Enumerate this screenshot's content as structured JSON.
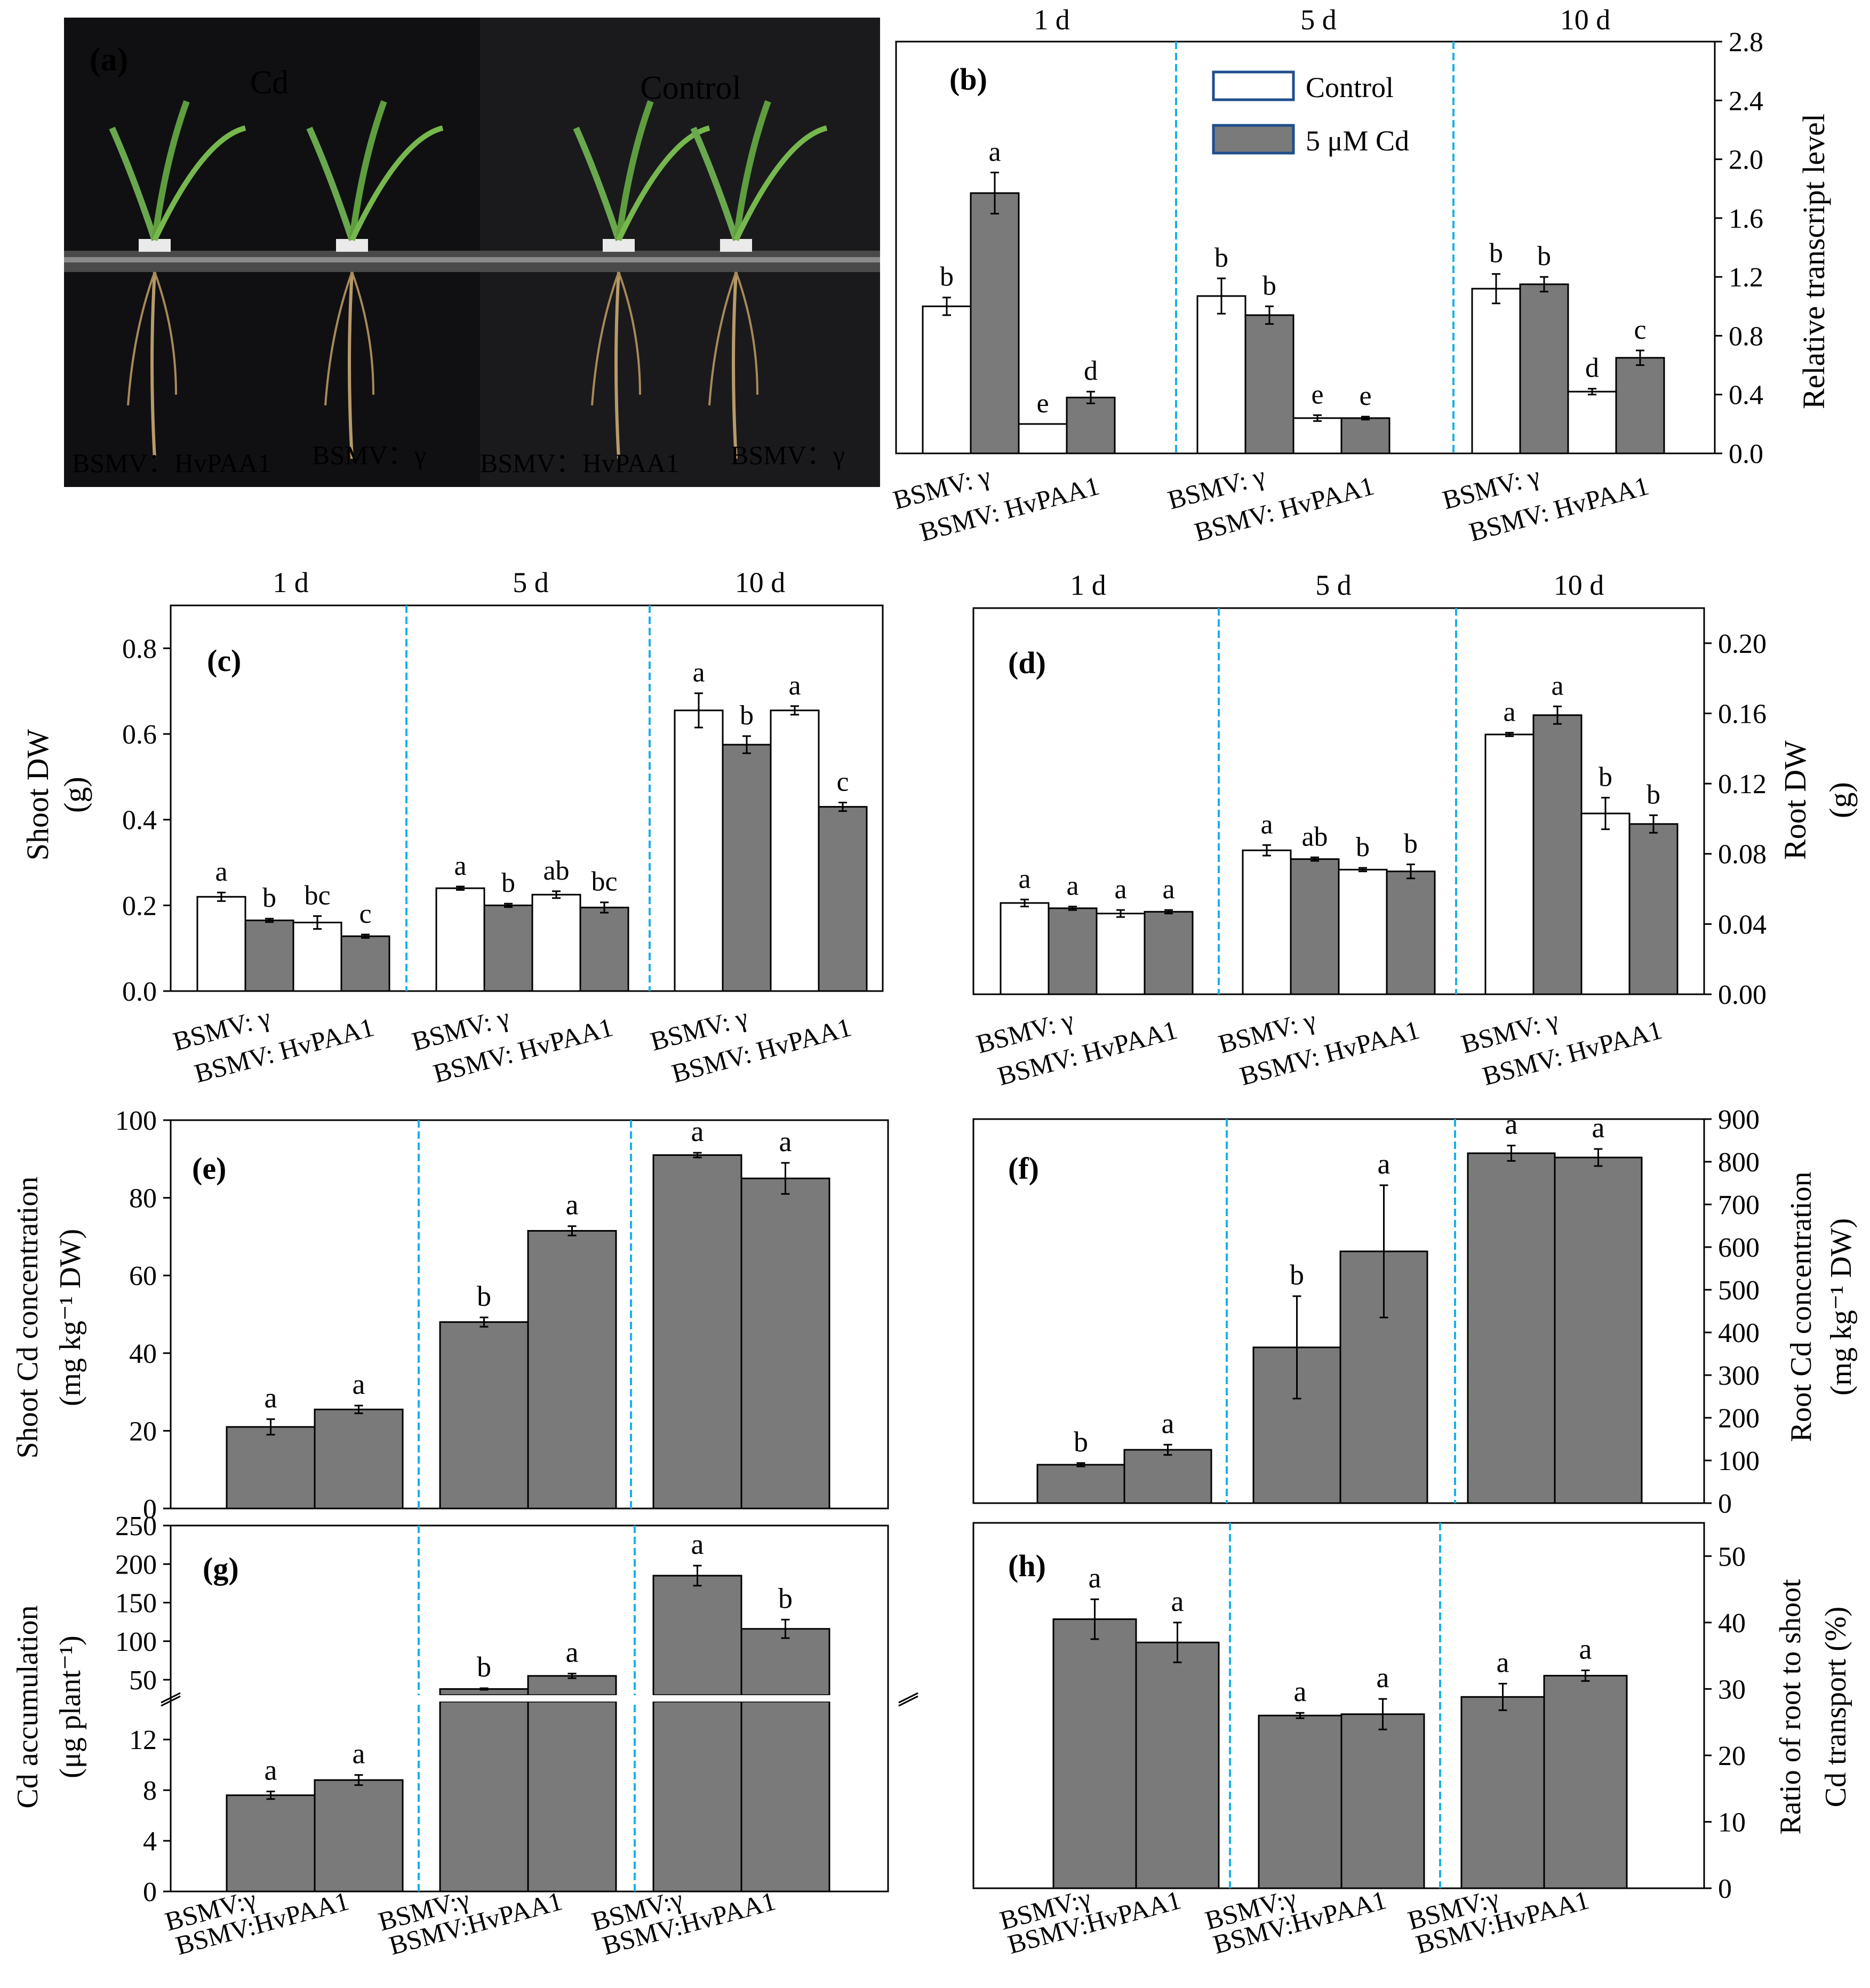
{
  "colors": {
    "control_fill": "#ffffff",
    "cd_fill": "#7a7a7a",
    "divider": "#1ab0e8",
    "panel_a_label": "#e8d000",
    "photo_text": "#ffffff",
    "photo_bg": "#0c0c0e"
  },
  "panel_a": {
    "label": "(a)",
    "left_title": "Cd",
    "right_title": "Control",
    "bottom_labels": [
      "BSMV：HvPAA1",
      "BSMV：γ",
      "BSMV：HvPAA1",
      "BSMV：γ"
    ]
  },
  "chart_data": [
    {
      "id": "b",
      "label": "(b)",
      "type": "bar",
      "days": [
        "1 d",
        "5 d",
        "10 d"
      ],
      "categories": [
        "BSMV: γ",
        "BSMV: HvPAA1"
      ],
      "legend": [
        "Control",
        "5 μM Cd"
      ],
      "series": [
        {
          "name": "Control",
          "values": [
            [
              1.0,
              0.2
            ],
            [
              1.07,
              0.24
            ],
            [
              1.12,
              0.42
            ]
          ],
          "errors": [
            [
              0.06,
              0.0
            ],
            [
              0.12,
              0.02
            ],
            [
              0.1,
              0.02
            ]
          ]
        },
        {
          "name": "5 μM Cd",
          "values": [
            [
              1.77,
              0.38
            ],
            [
              0.94,
              0.24
            ],
            [
              1.15,
              0.65
            ]
          ],
          "errors": [
            [
              0.14,
              0.04
            ],
            [
              0.06,
              0.01
            ],
            [
              0.05,
              0.05
            ]
          ]
        }
      ],
      "letters": [
        [
          [
            "b",
            "e"
          ],
          [
            "b",
            "e"
          ],
          [
            "b",
            "d"
          ]
        ],
        [
          [
            "a",
            "d"
          ],
          [
            "b",
            "e"
          ],
          [
            "b",
            "c"
          ]
        ]
      ],
      "ylabel": "Relative transcript level",
      "ylim": [
        0,
        2.8
      ],
      "yticks": [
        "0.0",
        "0.4",
        "0.8",
        "1.2",
        "1.6",
        "2.0",
        "2.4",
        "2.8"
      ],
      "yaxis_side": "right"
    },
    {
      "id": "c",
      "label": "(c)",
      "type": "bar",
      "days": [
        "1 d",
        "5 d",
        "10 d"
      ],
      "categories": [
        "BSMV: γ",
        "BSMV: HvPAA1"
      ],
      "series": [
        {
          "name": "Control",
          "values": [
            [
              0.22,
              0.16
            ],
            [
              0.24,
              0.225
            ],
            [
              0.655,
              0.655
            ]
          ],
          "errors": [
            [
              0.01,
              0.015
            ],
            [
              0.004,
              0.008
            ],
            [
              0.04,
              0.01
            ]
          ]
        },
        {
          "name": "5 μM Cd",
          "values": [
            [
              0.165,
              0.128
            ],
            [
              0.2,
              0.195
            ],
            [
              0.575,
              0.43
            ]
          ],
          "errors": [
            [
              0.004,
              0.004
            ],
            [
              0.004,
              0.012
            ],
            [
              0.02,
              0.01
            ]
          ]
        }
      ],
      "letters": [
        [
          [
            "a",
            "bc"
          ],
          [
            "a",
            "ab"
          ],
          [
            "a",
            "a"
          ]
        ],
        [
          [
            "b",
            "c"
          ],
          [
            "b",
            "bc"
          ],
          [
            "b",
            "c"
          ]
        ]
      ],
      "ylabel": "Shoot DW",
      "yunit": "(g)",
      "ylim": [
        0,
        0.9
      ],
      "yticks": [
        "0.0",
        "0.2",
        "0.4",
        "0.6",
        "0.8"
      ],
      "yaxis_side": "left"
    },
    {
      "id": "d",
      "label": "(d)",
      "type": "bar",
      "days": [
        "1 d",
        "5 d",
        "10 d"
      ],
      "categories": [
        "BSMV: γ",
        "BSMV: HvPAA1"
      ],
      "series": [
        {
          "name": "Control",
          "values": [
            [
              0.052,
              0.046
            ],
            [
              0.082,
              0.071
            ],
            [
              0.148,
              0.103
            ]
          ],
          "errors": [
            [
              0.002,
              0.002
            ],
            [
              0.003,
              0.001
            ],
            [
              0.001,
              0.009
            ]
          ]
        },
        {
          "name": "5 μM Cd",
          "values": [
            [
              0.049,
              0.047
            ],
            [
              0.077,
              0.07
            ],
            [
              0.159,
              0.097
            ]
          ],
          "errors": [
            [
              0.001,
              0.001
            ],
            [
              0.001,
              0.004
            ],
            [
              0.005,
              0.005
            ]
          ]
        }
      ],
      "letters": [
        [
          [
            "a",
            "a"
          ],
          [
            "a",
            "b"
          ],
          [
            "a",
            "b"
          ]
        ],
        [
          [
            "a",
            "a"
          ],
          [
            "ab",
            "b"
          ],
          [
            "a",
            "b"
          ]
        ]
      ],
      "ylabel": "Root DW",
      "yunit": "(g)",
      "ylim": [
        0,
        0.22
      ],
      "yticks": [
        "0.00",
        "0.04",
        "0.08",
        "0.12",
        "0.16",
        "0.20"
      ],
      "yaxis_side": "right"
    },
    {
      "id": "e",
      "label": "(e)",
      "type": "bar",
      "groups": [
        1,
        2,
        3
      ],
      "values": [
        [
          21,
          25.5
        ],
        [
          48,
          71.5
        ],
        [
          91,
          85
        ]
      ],
      "errors": [
        [
          2,
          1
        ],
        [
          1.2,
          1.2
        ],
        [
          0.6,
          4
        ]
      ],
      "letters": [
        [
          "a",
          "a"
        ],
        [
          "b",
          "a"
        ],
        [
          "a",
          "a"
        ]
      ],
      "ylabel": "Shoot Cd concentration",
      "yunit": "(mg kg⁻¹ DW)",
      "ylim": [
        0,
        100
      ],
      "yticks": [
        "0",
        "20",
        "40",
        "60",
        "80",
        "100"
      ],
      "yaxis_side": "left"
    },
    {
      "id": "f",
      "label": "(f)",
      "type": "bar",
      "groups": [
        1,
        2,
        3
      ],
      "values": [
        [
          90,
          125
        ],
        [
          365,
          590
        ],
        [
          820,
          810
        ]
      ],
      "errors": [
        [
          4,
          12
        ],
        [
          120,
          155
        ],
        [
          18,
          20
        ]
      ],
      "letters": [
        [
          "b",
          "a"
        ],
        [
          "b",
          "a"
        ],
        [
          "a",
          "a"
        ]
      ],
      "ylabel": "Root Cd concentration",
      "yunit": "(mg kg⁻¹ DW)",
      "ylim": [
        0,
        900
      ],
      "yticks": [
        "0",
        "100",
        "200",
        "300",
        "400",
        "500",
        "600",
        "700",
        "800",
        "900"
      ],
      "yaxis_side": "right"
    },
    {
      "id": "g",
      "label": "(g)",
      "type": "bar",
      "categories": [
        "BSMV:γ",
        "BSMV:HvPAA1"
      ],
      "axis_break": [
        15,
        30
      ],
      "values": [
        [
          7.6,
          8.8
        ],
        [
          38,
          55
        ],
        [
          185,
          116
        ]
      ],
      "errors": [
        [
          0.3,
          0.4
        ],
        [
          1,
          3
        ],
        [
          13,
          12
        ]
      ],
      "letters": [
        [
          "a",
          "a"
        ],
        [
          "b",
          "a"
        ],
        [
          "a",
          "b"
        ]
      ],
      "ylabel": "Cd accumulation",
      "yunit": "(μg plant⁻¹)",
      "ylim_lower": [
        0,
        15
      ],
      "ylim_upper": [
        30,
        250
      ],
      "yticks_lower": [
        "0",
        "4",
        "8",
        "12"
      ],
      "yticks_upper": [
        "50",
        "100",
        "150",
        "200",
        "250"
      ],
      "yaxis_side": "left"
    },
    {
      "id": "h",
      "label": "(h)",
      "type": "bar",
      "categories": [
        "BSMV:γ",
        "BSMV:HvPAA1"
      ],
      "values": [
        [
          40.5,
          37
        ],
        [
          26,
          26.2
        ],
        [
          28.8,
          32
        ]
      ],
      "errors": [
        [
          3,
          3
        ],
        [
          0.4,
          2.3
        ],
        [
          2,
          0.8
        ]
      ],
      "letters": [
        [
          "a",
          "a"
        ],
        [
          "a",
          "a"
        ],
        [
          "a",
          "a"
        ]
      ],
      "ylabel": "Ratio of root to shoot",
      "yunit": "Cd transport (%)",
      "ylim": [
        0,
        55
      ],
      "yticks": [
        "0",
        "10",
        "20",
        "30",
        "40",
        "50"
      ],
      "yaxis_side": "right"
    }
  ]
}
